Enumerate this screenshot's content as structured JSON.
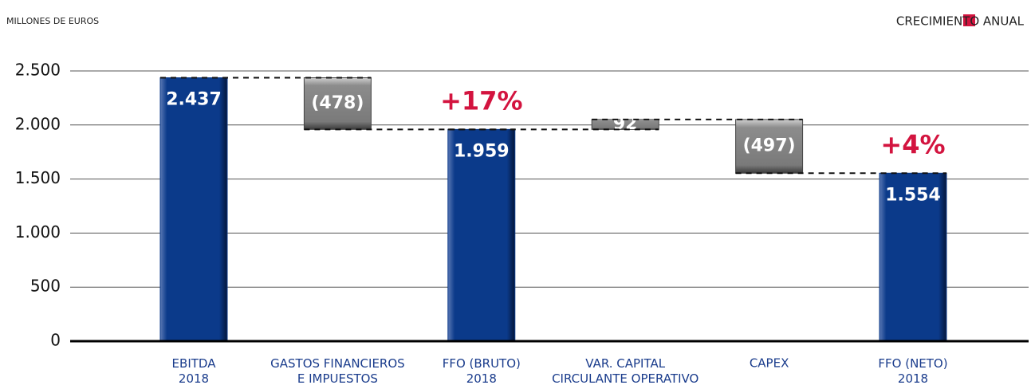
{
  "chart_data": {
    "type": "waterfall",
    "y_axis_label": "MILLONES DE EUROS",
    "legend": {
      "label": "CRECIMIENTO ANUAL",
      "color": "#d3143f",
      "position": "top-right"
    },
    "categories": [
      "EBITDA\n2018",
      "GASTOS FINANCIEROS\nE IMPUESTOS",
      "FFO (BRUTO)\n2018",
      "VAR. CAPITAL\nCIRCULANTE OPERATIVO",
      "CAPEX",
      "FFO (NETO)\n2018"
    ],
    "values": [
      2437,
      -478,
      1959,
      92,
      -497,
      1554
    ],
    "value_labels": [
      "2.437",
      "(478)",
      "1.959",
      "92",
      "(497)",
      "1.554"
    ],
    "totals": [
      true,
      false,
      true,
      false,
      false,
      true
    ],
    "growth_labels": [
      null,
      null,
      "+17%",
      null,
      null,
      "+4%"
    ],
    "total_color": "#0b3a8a",
    "change_color": "#8c8c8c",
    "ylim": [
      0,
      2500
    ],
    "yticks": [
      0,
      500,
      {
        "value": 1000,
        "label": "1.000"
      },
      {
        "value": 1500,
        "label": "1.500"
      },
      {
        "value": 2000,
        "label": "2.000"
      },
      {
        "value": 2500,
        "label": "2.500"
      }
    ],
    "grid": true
  }
}
